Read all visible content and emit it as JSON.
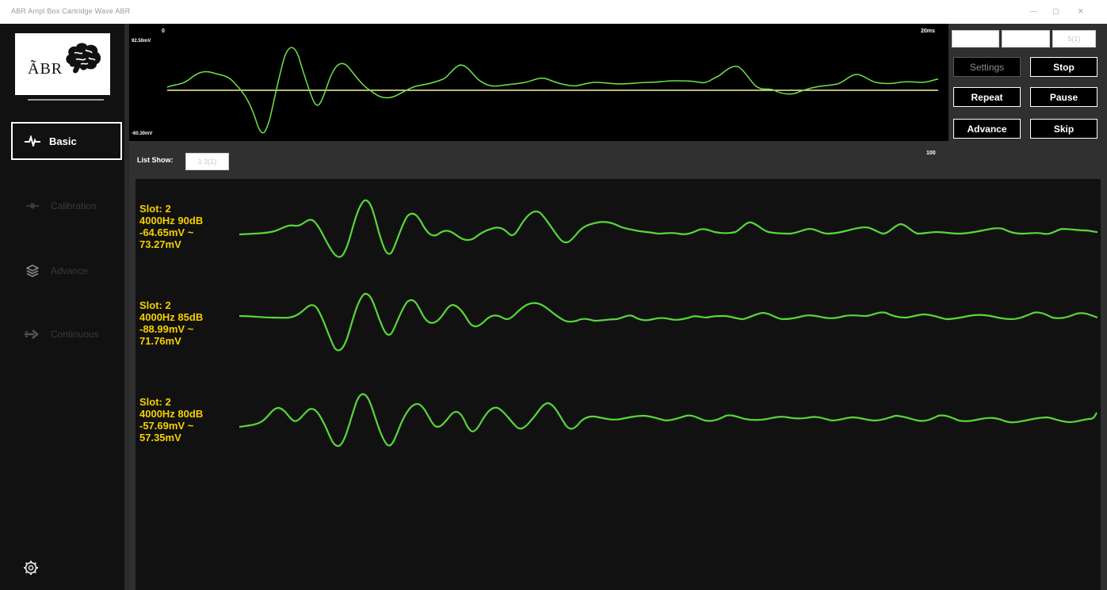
{
  "window": {
    "title": "ABR Ampl Box Cartridge Wave ABR",
    "controls": [
      "—",
      "▢",
      "✕"
    ]
  },
  "sidebar": {
    "logo_text": "ÃBR",
    "items": [
      {
        "label": "Basic",
        "icon": "pulse-icon",
        "active": true
      },
      {
        "label": "Calibration",
        "icon": "calibration-icon",
        "active": false
      },
      {
        "label": "Advance",
        "icon": "layers-icon",
        "active": false
      },
      {
        "label": "Continuous",
        "icon": "arrow-right-icon",
        "active": false
      }
    ],
    "settings_icon": "gear-icon"
  },
  "top_plot": {
    "x_start": "0",
    "x_end": "20ms",
    "y_max": "92.50mV",
    "y_min": "-60.30mV",
    "baseline_color": "#f5f5a0",
    "trace_color": "#6fe24a"
  },
  "controls": {
    "fields": [
      "",
      "",
      "5(1)"
    ],
    "settings": "Settings",
    "stop": "Stop",
    "repeat": "Repeat",
    "pause": "Pause",
    "advance": "Advance",
    "skip": "Skip"
  },
  "list": {
    "label": "List Show:",
    "value": "1 3(1)",
    "scale": "100"
  },
  "traces": [
    {
      "slot": "Slot: 2",
      "freq_db": "4000Hz  90dB",
      "range_min": "-64.65mV ~",
      "range_max": "73.27mV"
    },
    {
      "slot": "Slot: 2",
      "freq_db": "4000Hz  85dB",
      "range_min": "-88.99mV ~",
      "range_max": "71.76mV"
    },
    {
      "slot": "Slot: 2",
      "freq_db": "4000Hz  80dB",
      "range_min": "-57.69mV ~",
      "range_max": "57.35mV"
    }
  ],
  "colors": {
    "trace": "#56d83a",
    "label": "#f5d000",
    "panel": "#111111",
    "background": "#303030"
  }
}
